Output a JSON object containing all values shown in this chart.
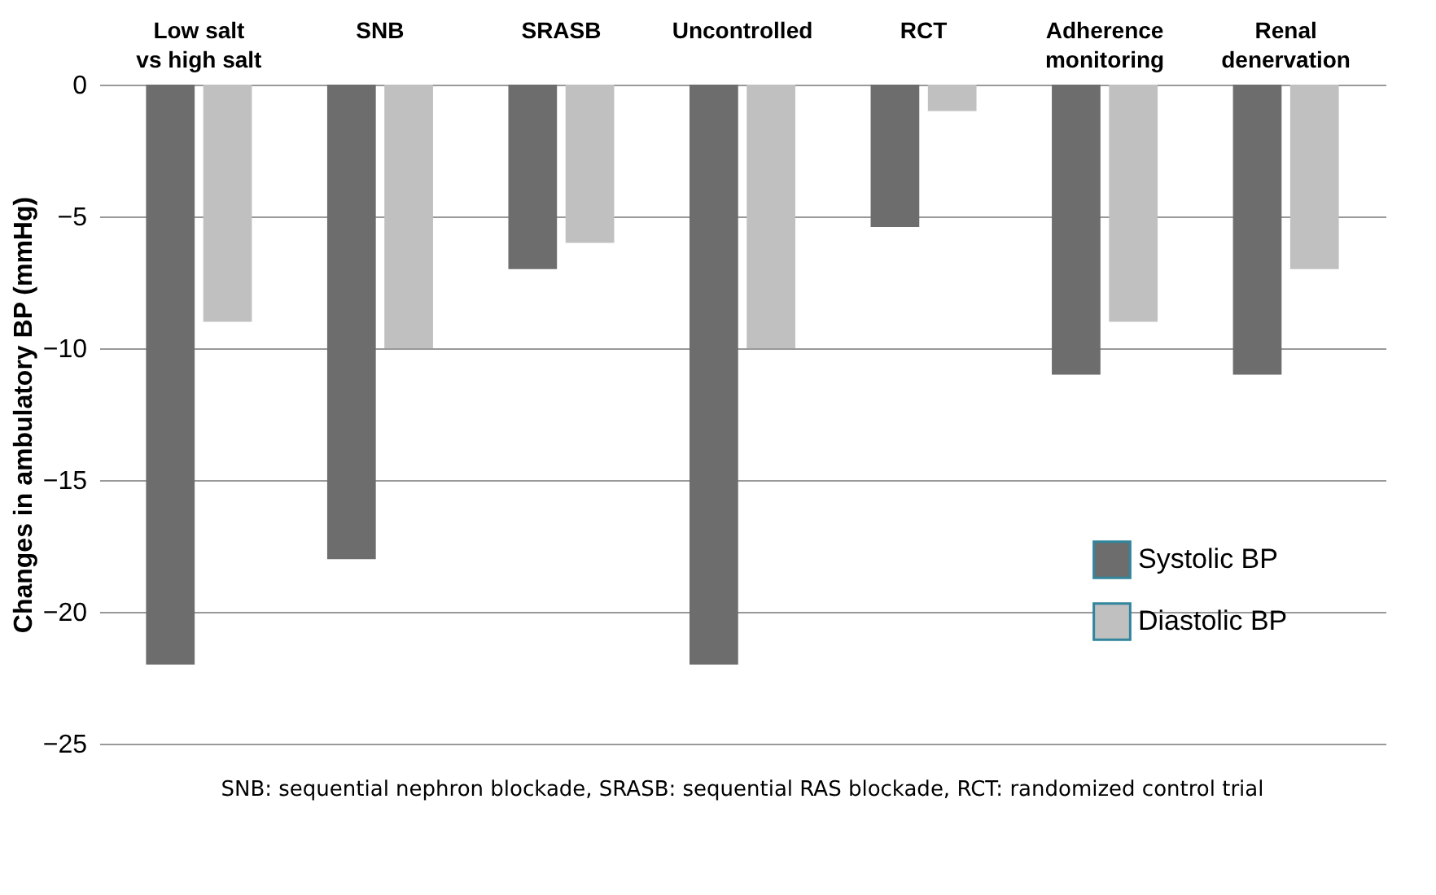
{
  "chart_data": {
    "type": "bar",
    "ylabel": "Changes in ambulatory BP (mmHg)",
    "categories": [
      "Low salt\nvs high salt",
      "SNB",
      "SRASB",
      "Uncontrolled",
      "RCT",
      "Adherence\nmonitoring",
      "Renal\ndenervation"
    ],
    "series": [
      {
        "name": "Systolic BP",
        "color": "#6d6d6d",
        "values": [
          -22,
          -18,
          -7,
          -22,
          -5.4,
          -11,
          -11
        ]
      },
      {
        "name": "Diastolic BP",
        "color": "#c0c0c0",
        "values": [
          -9,
          -10,
          -6,
          -10,
          -1,
          -9,
          -7
        ]
      }
    ],
    "ylim": [
      -25,
      0
    ],
    "yticks": [
      -25,
      -20,
      -15,
      -10,
      -5,
      0
    ],
    "grid": "y",
    "legend": "bottom right",
    "annotations": [
      "SNB: sequential nephron blockade, SRASB: sequential RAS blockade, RCT: randomized control trial"
    ]
  }
}
